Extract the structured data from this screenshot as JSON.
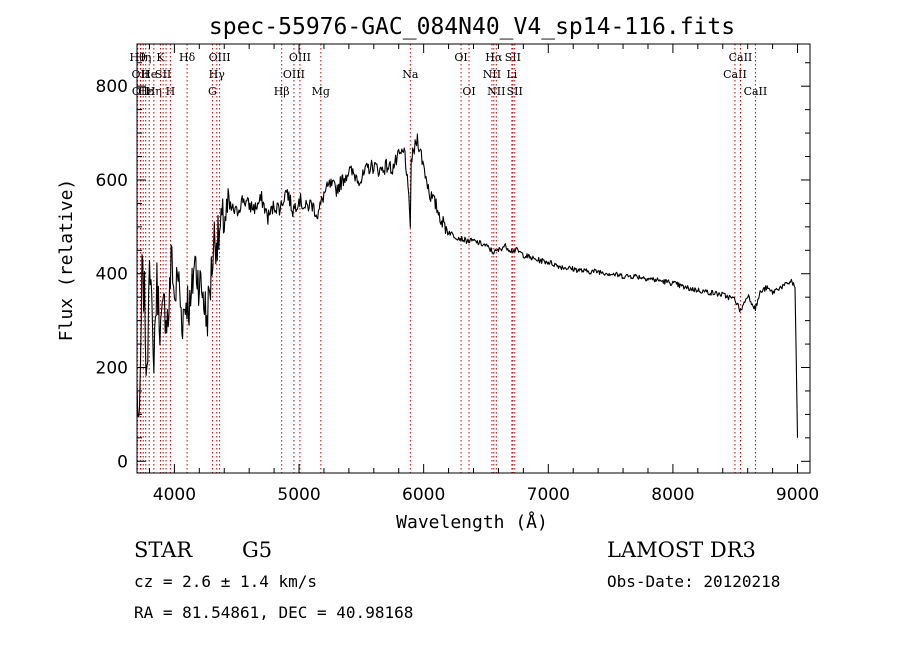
{
  "chart_data": {
    "type": "line",
    "title": "spec-55976-GAC_084N40_V4_sp14-116.fits",
    "xlabel": "Wavelength (Å)",
    "ylabel": "Flux (relative)",
    "xlim": [
      3700,
      9100
    ],
    "ylim": [
      -25,
      890
    ],
    "x_ticks": [
      "4000",
      "5000",
      "6000",
      "7000",
      "8000",
      "9000"
    ],
    "y_ticks": [
      "0",
      "200",
      "400",
      "600",
      "800"
    ],
    "line_color": "#000000",
    "marker_color": "#cc0000",
    "series": [
      {
        "x": [
          3700,
          3720,
          3740,
          3760,
          3780,
          3800,
          3830,
          3860,
          3890,
          3920,
          3950,
          3980,
          4000,
          4030,
          4060,
          4100,
          4130,
          4160,
          4200,
          4230,
          4260,
          4290,
          4320,
          4350,
          4400,
          4450,
          4500,
          4550,
          4600,
          4650,
          4700,
          4750,
          4800,
          4850,
          4900,
          4950,
          5000,
          5050,
          5100,
          5150,
          5200,
          5250,
          5300,
          5350,
          5400,
          5450,
          5500,
          5550,
          5600,
          5650,
          5700,
          5750,
          5800,
          5850,
          5893,
          5900,
          5950,
          6000,
          6050,
          6100,
          6150,
          6200,
          6250,
          6300,
          6350,
          6400,
          6450,
          6500,
          6563,
          6600,
          6650,
          6700,
          6750,
          6800,
          6900,
          7000,
          7100,
          7200,
          7300,
          7400,
          7500,
          7600,
          7700,
          7800,
          7900,
          8000,
          8100,
          8200,
          8300,
          8400,
          8500,
          8542,
          8600,
          8662,
          8700,
          8750,
          8800,
          8850,
          8900,
          8950,
          8980,
          9000
        ],
        "y": [
          150,
          60,
          400,
          350,
          150,
          480,
          200,
          380,
          280,
          330,
          300,
          450,
          340,
          400,
          300,
          350,
          320,
          430,
          380,
          360,
          300,
          380,
          480,
          470,
          520,
          540,
          530,
          560,
          545,
          540,
          560,
          520,
          545,
          540,
          580,
          535,
          560,
          540,
          550,
          525,
          570,
          590,
          580,
          600,
          620,
          610,
          600,
          625,
          630,
          620,
          630,
          625,
          650,
          660,
          510,
          640,
          690,
          630,
          570,
          545,
          510,
          490,
          480,
          475,
          470,
          470,
          465,
          460,
          445,
          450,
          460,
          450,
          450,
          440,
          430,
          425,
          415,
          410,
          405,
          405,
          400,
          395,
          395,
          390,
          385,
          380,
          370,
          365,
          360,
          355,
          345,
          320,
          355,
          325,
          360,
          370,
          360,
          370,
          375,
          385,
          370,
          50
        ]
      }
    ],
    "line_markers": [
      {
        "w": 3705,
        "l": "Hθ",
        "r": 0
      },
      {
        "w": 3727,
        "l": "OII",
        "r": 1
      },
      {
        "w": 3730,
        "l": "OII",
        "r": 2
      },
      {
        "w": 3750,
        "l": "Hη",
        "r": 0
      },
      {
        "w": 3770,
        "l": "Hε",
        "r": 2
      },
      {
        "w": 3798,
        "l": "He",
        "r": 1
      },
      {
        "w": 3835,
        "l": "Hη",
        "r": 2
      },
      {
        "w": 3888,
        "l": "K",
        "r": 0
      },
      {
        "w": 3910,
        "l": "SII",
        "r": 1
      },
      {
        "w": 3933,
        "l": "",
        "r": 0
      },
      {
        "w": 3968,
        "l": "H",
        "r": 2
      },
      {
        "w": 4102,
        "l": "Hδ",
        "r": 0
      },
      {
        "w": 4305,
        "l": "G",
        "r": 2
      },
      {
        "w": 4340,
        "l": "Hγ",
        "r": 1
      },
      {
        "w": 4363,
        "l": "OIII",
        "r": 0
      },
      {
        "w": 4861,
        "l": "Hβ",
        "r": 2
      },
      {
        "w": 4959,
        "l": "OIII",
        "r": 1
      },
      {
        "w": 5007,
        "l": "OIII",
        "r": 0
      },
      {
        "w": 5175,
        "l": "Mg",
        "r": 2
      },
      {
        "w": 5893,
        "l": "Na",
        "r": 1
      },
      {
        "w": 6300,
        "l": "OI",
        "r": 0
      },
      {
        "w": 6364,
        "l": "OI",
        "r": 2
      },
      {
        "w": 6548,
        "l": "NII",
        "r": 1
      },
      {
        "w": 6563,
        "l": "Hα",
        "r": 0
      },
      {
        "w": 6583,
        "l": "NII",
        "r": 2
      },
      {
        "w": 6708,
        "l": "Li",
        "r": 1
      },
      {
        "w": 6716,
        "l": "SII",
        "r": 0
      },
      {
        "w": 6731,
        "l": "SII",
        "r": 2
      },
      {
        "w": 8498,
        "l": "CaII",
        "r": 1
      },
      {
        "w": 8542,
        "l": "CaII",
        "r": 0
      },
      {
        "w": 8662,
        "l": "CaII",
        "r": 2
      }
    ]
  },
  "info": {
    "object_class": "STAR",
    "subclass": "G5",
    "survey": "LAMOST DR3",
    "redshift": "cz = 2.6 ± 1.4 km/s",
    "obs_date": "Obs-Date: 20120218",
    "coordinates": "RA =  81.54861, DEC =  40.98168"
  }
}
